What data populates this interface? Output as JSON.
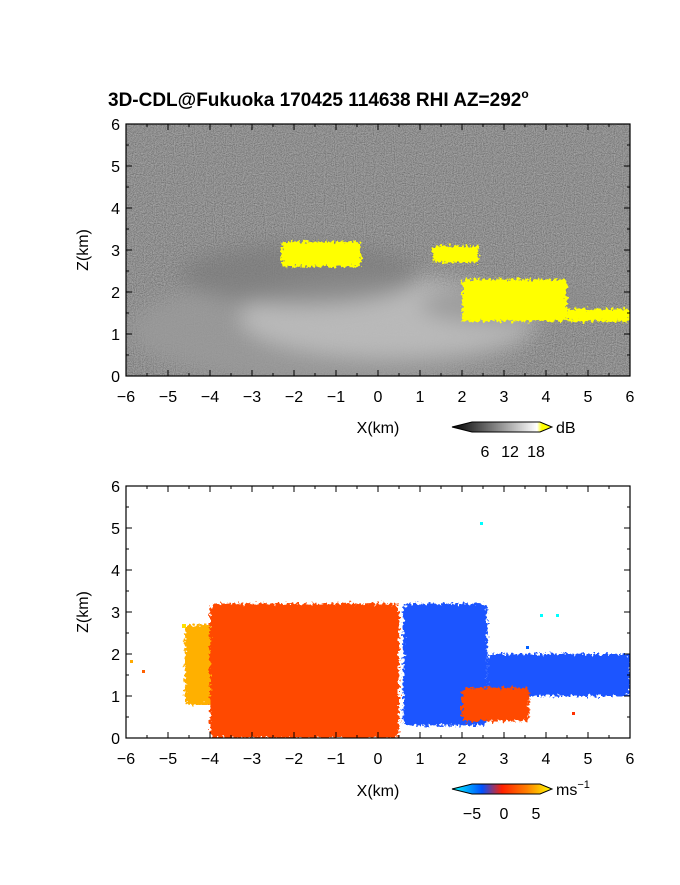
{
  "title": "3D-CDL@Fukuoka 170425 114638 RHI AZ=292",
  "title_superscript": "o",
  "panels": [
    {
      "id": "reflectivity",
      "xlabel": "X(km)",
      "ylabel": "Z(km)",
      "colorbar": {
        "unit": "dB",
        "ticks": [
          "6",
          "12",
          "18"
        ],
        "colors": [
          "#000000",
          "#ffffff",
          "#ffff00"
        ]
      },
      "highlight_color": "#ffff00"
    },
    {
      "id": "velocity",
      "xlabel": "X(km)",
      "ylabel": "Z(km)",
      "colorbar": {
        "unit": "ms",
        "unit_superscript": "−1",
        "ticks": [
          "−5",
          "0",
          "5"
        ],
        "colors": [
          "#00ffff",
          "#0050ff",
          "#ff2000",
          "#ffff00"
        ]
      }
    }
  ],
  "chart_data": [
    {
      "type": "heatmap",
      "title": "3D-CDL@Fukuoka 170425 114638 RHI AZ=292°",
      "xlabel": "X(km)",
      "ylabel": "Z(km)",
      "xlim": [
        -6,
        6
      ],
      "ylim": [
        0,
        6
      ],
      "xticks": [
        "−6",
        "−5",
        "−4",
        "−3",
        "−2",
        "−1",
        "0",
        "1",
        "2",
        "3",
        "4",
        "5",
        "6"
      ],
      "yticks": [
        "0",
        "1",
        "2",
        "3",
        "4",
        "5",
        "6"
      ],
      "colorbar_unit": "dB",
      "colorbar_ticks": [
        6,
        12,
        18
      ],
      "strong_echo_regions_km": [
        {
          "x": [
            -2.3,
            -0.4
          ],
          "z": [
            2.6,
            3.2
          ]
        },
        {
          "x": [
            1.3,
            2.4
          ],
          "z": [
            2.7,
            3.1
          ]
        },
        {
          "x": [
            2.0,
            4.5
          ],
          "z": [
            1.3,
            2.3
          ]
        },
        {
          "x": [
            4.5,
            6.0
          ],
          "z": [
            1.3,
            1.6
          ]
        }
      ]
    },
    {
      "type": "heatmap",
      "title": "",
      "xlabel": "X(km)",
      "ylabel": "Z(km)",
      "xlim": [
        -6,
        6
      ],
      "ylim": [
        0,
        6
      ],
      "xticks": [
        "−6",
        "−5",
        "−4",
        "−3",
        "−2",
        "−1",
        "0",
        "1",
        "2",
        "3",
        "4",
        "5",
        "6"
      ],
      "yticks": [
        "0",
        "1",
        "2",
        "3",
        "4",
        "5",
        "6"
      ],
      "colorbar_unit": "ms⁻¹",
      "colorbar_ticks": [
        -5,
        0,
        5
      ],
      "regions_km": [
        {
          "x": [
            -4.6,
            -2.5
          ],
          "z": [
            0.8,
            2.7
          ],
          "velocity": 4
        },
        {
          "x": [
            -4.0,
            0.5
          ],
          "z": [
            0.0,
            3.2
          ],
          "velocity": 2
        },
        {
          "x": [
            0.6,
            2.6
          ],
          "z": [
            0.3,
            3.2
          ],
          "velocity": -3
        },
        {
          "x": [
            2.6,
            6.0
          ],
          "z": [
            1.0,
            2.0
          ],
          "velocity": -2
        },
        {
          "x": [
            2.0,
            3.6
          ],
          "z": [
            0.4,
            1.2
          ],
          "velocity": 2
        }
      ]
    }
  ]
}
